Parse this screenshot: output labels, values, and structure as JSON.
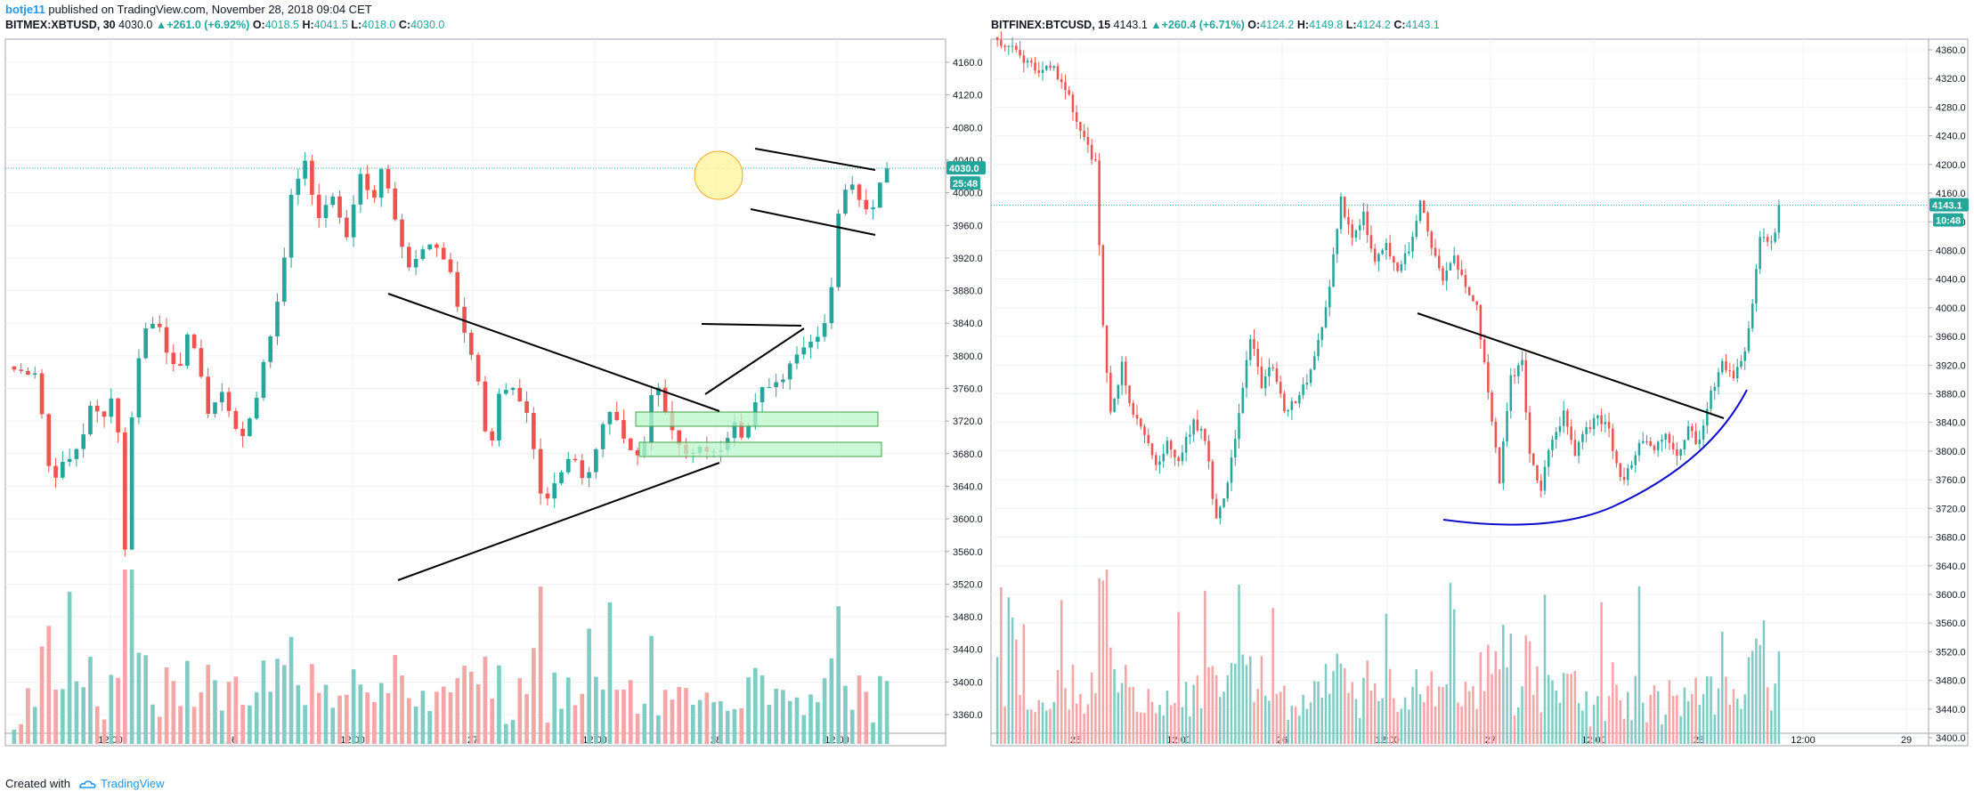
{
  "header": {
    "author": "botje11",
    "published": "published on TradingView.com, November 28, 2018 09:04 CET"
  },
  "footer": {
    "created_with": "Created with",
    "brand": "TradingView"
  },
  "colors": {
    "up": "#26a69a",
    "down": "#ef5350",
    "up_volume": "#80cbc4",
    "down_volume": "#f4a5a5",
    "highlight_box": "#b9f6ca",
    "circle": "#fff59d",
    "curve": "#0d0dcc",
    "grid": "#eef1f4"
  },
  "chart_data": [
    {
      "type": "candlestick",
      "panel": "left",
      "symbol": "BITMEX:XBTUSD",
      "interval": "30",
      "last": "4030.0",
      "change": "+261.0 (+6.92%)",
      "open": "4018.5",
      "high": "4041.5",
      "low": "4018.0",
      "close": "4030.0",
      "price_tag": "4030.0",
      "countdown": "25:48",
      "ylim": [
        3320,
        4190
      ],
      "y_ticks": [
        "4160.0",
        "4120.0",
        "4080.0",
        "4040.0",
        "4000.0",
        "3960.0",
        "3920.0",
        "3880.0",
        "3840.0",
        "3800.0",
        "3760.0",
        "3720.0",
        "3680.0",
        "3640.0",
        "3600.0",
        "3560.0",
        "3520.0",
        "3480.0",
        "3440.0",
        "3400.0",
        "3360.0"
      ],
      "x_ticks": [
        "12:00",
        "26",
        "12:00",
        "27",
        "12:00",
        "28",
        "12:00"
      ],
      "bars": 127,
      "anchors": [
        [
          0,
          3790
        ],
        [
          5,
          3770
        ],
        [
          8,
          3650
        ],
        [
          14,
          3690
        ],
        [
          17,
          3740
        ],
        [
          20,
          3720
        ],
        [
          22,
          3760
        ],
        [
          24,
          3560
        ],
        [
          26,
          3770
        ],
        [
          28,
          3830
        ],
        [
          31,
          3850
        ],
        [
          33,
          3800
        ],
        [
          36,
          3790
        ],
        [
          38,
          3840
        ],
        [
          42,
          3730
        ],
        [
          45,
          3760
        ],
        [
          49,
          3690
        ],
        [
          52,
          3740
        ],
        [
          55,
          3810
        ],
        [
          58,
          3880
        ],
        [
          60,
          3990
        ],
        [
          63,
          4040
        ],
        [
          66,
          3960
        ],
        [
          69,
          4000
        ],
        [
          72,
          3940
        ],
        [
          75,
          4020
        ],
        [
          78,
          3990
        ],
        [
          80,
          4040
        ],
        [
          83,
          3960
        ],
        [
          86,
          3900
        ],
        [
          90,
          3940
        ],
        [
          94,
          3920
        ],
        [
          97,
          3840
        ],
        [
          100,
          3790
        ],
        [
          103,
          3680
        ],
        [
          106,
          3770
        ],
        [
          109,
          3750
        ],
        [
          112,
          3720
        ],
        [
          115,
          3610
        ],
        [
          118,
          3650
        ],
        [
          121,
          3680
        ],
        [
          124,
          3640
        ],
        [
          127,
          3700
        ],
        [
          130,
          3740
        ],
        [
          133,
          3690
        ],
        [
          136,
          3670
        ],
        [
          139,
          3780
        ],
        [
          141,
          3740
        ],
        [
          143,
          3700
        ],
        [
          146,
          3680
        ],
        [
          150,
          3690
        ],
        [
          153,
          3680
        ],
        [
          156,
          3720
        ],
        [
          158,
          3700
        ],
        [
          161,
          3740
        ],
        [
          163,
          3770
        ],
        [
          166,
          3760
        ],
        [
          169,
          3800
        ],
        [
          172,
          3820
        ],
        [
          175,
          3830
        ],
        [
          177,
          3850
        ],
        [
          179,
          3970
        ],
        [
          181,
          4020
        ],
        [
          183,
          3990
        ],
        [
          186,
          3980
        ],
        [
          189,
          4020
        ],
        [
          191,
          4030
        ]
      ],
      "volume_ylim": [
        0,
        100
      ],
      "annotations": [
        "converging trendlines",
        "support zones",
        "bull flag channel",
        "circle at 4020"
      ]
    },
    {
      "type": "candlestick",
      "panel": "right",
      "symbol": "BITFINEX:BTCUSD",
      "interval": "15",
      "last": "4143.1",
      "change": "+260.4 (+6.71%)",
      "open": "4124.2",
      "high": "4149.8",
      "low": "4124.2",
      "close": "4143.1",
      "price_tag": "4143.1",
      "countdown": "10:48",
      "ylim": [
        3380,
        4380
      ],
      "y_ticks": [
        "4360.0",
        "4320.0",
        "4280.0",
        "4240.0",
        "4200.0",
        "4160.0",
        "4120.0",
        "4080.0",
        "4040.0",
        "4000.0",
        "3960.0",
        "3920.0",
        "3880.0",
        "3840.0",
        "3800.0",
        "3760.0",
        "3720.0",
        "3680.0",
        "3640.0",
        "3600.0",
        "3560.0",
        "3520.0",
        "3480.0",
        "3440.0",
        "3400.0"
      ],
      "x_ticks": [
        "25",
        "12:00",
        "26",
        "12:00",
        "27",
        "12:00",
        "28",
        "12:00",
        "29"
      ],
      "bars": 208,
      "anchors": [
        [
          0,
          4370
        ],
        [
          5,
          4360
        ],
        [
          10,
          4330
        ],
        [
          14,
          4340
        ],
        [
          18,
          4310
        ],
        [
          22,
          4250
        ],
        [
          26,
          4200
        ],
        [
          28,
          3980
        ],
        [
          30,
          3850
        ],
        [
          33,
          3920
        ],
        [
          36,
          3850
        ],
        [
          39,
          3820
        ],
        [
          42,
          3780
        ],
        [
          45,
          3810
        ],
        [
          48,
          3790
        ],
        [
          52,
          3840
        ],
        [
          55,
          3820
        ],
        [
          58,
          3700
        ],
        [
          61,
          3760
        ],
        [
          64,
          3850
        ],
        [
          67,
          3960
        ],
        [
          70,
          3890
        ],
        [
          73,
          3920
        ],
        [
          76,
          3850
        ],
        [
          79,
          3870
        ],
        [
          82,
          3900
        ],
        [
          85,
          3950
        ],
        [
          88,
          4030
        ],
        [
          91,
          4150
        ],
        [
          94,
          4100
        ],
        [
          97,
          4130
        ],
        [
          100,
          4060
        ],
        [
          103,
          4090
        ],
        [
          106,
          4050
        ],
        [
          109,
          4080
        ],
        [
          112,
          4150
        ],
        [
          115,
          4090
        ],
        [
          118,
          4040
        ],
        [
          121,
          4070
        ],
        [
          124,
          4030
        ],
        [
          127,
          4000
        ],
        [
          130,
          3880
        ],
        [
          133,
          3760
        ],
        [
          136,
          3900
        ],
        [
          139,
          3930
        ],
        [
          141,
          3790
        ],
        [
          144,
          3750
        ],
        [
          147,
          3820
        ],
        [
          150,
          3850
        ],
        [
          153,
          3800
        ],
        [
          156,
          3830
        ],
        [
          159,
          3850
        ],
        [
          162,
          3830
        ],
        [
          165,
          3760
        ],
        [
          168,
          3780
        ],
        [
          171,
          3820
        ],
        [
          174,
          3800
        ],
        [
          177,
          3830
        ],
        [
          180,
          3790
        ],
        [
          183,
          3830
        ],
        [
          186,
          3810
        ],
        [
          189,
          3880
        ],
        [
          192,
          3920
        ],
        [
          195,
          3900
        ],
        [
          198,
          3940
        ],
        [
          200,
          4010
        ],
        [
          202,
          4100
        ],
        [
          204,
          4090
        ],
        [
          206,
          4100
        ],
        [
          208,
          4143
        ]
      ],
      "volume_ylim": [
        0,
        100
      ],
      "annotations": [
        "descending trendline",
        "rounding bottom curve"
      ]
    }
  ]
}
